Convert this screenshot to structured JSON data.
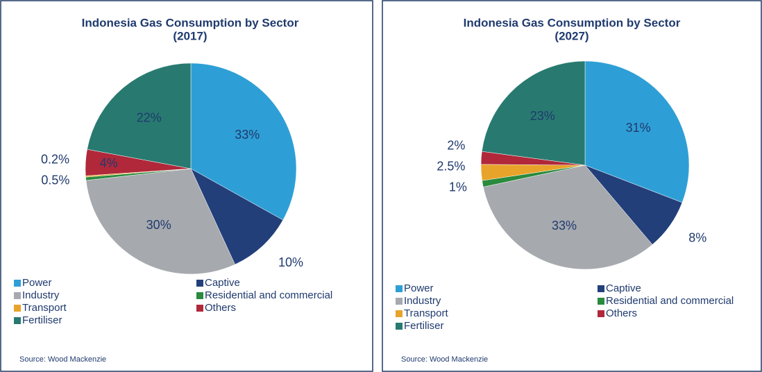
{
  "chart_data": [
    {
      "type": "pie",
      "title": "Indonesia Gas Consumption by Sector",
      "subtitle": "(2017)",
      "categories": [
        "Power",
        "Captive",
        "Industry",
        "Residential and commercial",
        "Transport",
        "Others",
        "Fertiliser"
      ],
      "values": [
        33,
        10,
        30,
        0.5,
        0.2,
        4,
        22
      ],
      "value_labels": [
        "33%",
        "10%",
        "30%",
        "0.5%",
        "0.2%",
        "4%",
        "22%"
      ],
      "colors": [
        "#2e9fd6",
        "#223f7a",
        "#a6a9ae",
        "#2a8a3e",
        "#e8a32a",
        "#b0283a",
        "#287a70"
      ],
      "source": "Source: Wood Mackenzie"
    },
    {
      "type": "pie",
      "title": "Indonesia Gas Consumption by Sector",
      "subtitle": "(2027)",
      "categories": [
        "Power",
        "Captive",
        "Industry",
        "Residential and commercial",
        "Transport",
        "Others",
        "Fertiliser"
      ],
      "values": [
        31,
        8,
        33,
        1,
        2.5,
        2,
        23
      ],
      "value_labels": [
        "31%",
        "8%",
        "33%",
        "1%",
        "2.5%",
        "2%",
        "23%"
      ],
      "colors": [
        "#2e9fd6",
        "#223f7a",
        "#a6a9ae",
        "#2a8a3e",
        "#e8a32a",
        "#b0283a",
        "#287a70"
      ],
      "source": "Source: Wood Mackenzie"
    }
  ]
}
